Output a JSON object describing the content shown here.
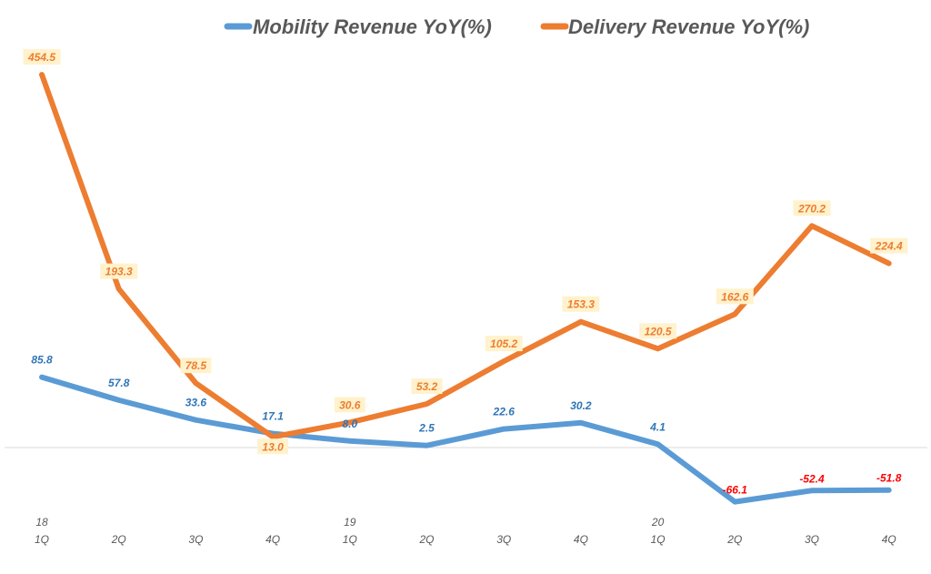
{
  "chart_data": {
    "type": "line",
    "categories": [
      "1Q",
      "2Q",
      "3Q",
      "4Q",
      "1Q",
      "2Q",
      "3Q",
      "4Q",
      "1Q",
      "2Q",
      "3Q",
      "4Q"
    ],
    "year_labels": [
      "18",
      "",
      "",
      "",
      "19",
      "",
      "",
      "",
      "20",
      "",
      "",
      ""
    ],
    "series": [
      {
        "name": "Mobility Revenue YoY(%)",
        "color": "#5B9BD5",
        "label_color": "#2E75B6",
        "negative_label_color": "#FF0000",
        "values": [
          85.8,
          57.8,
          33.6,
          17.1,
          8.0,
          2.5,
          22.6,
          30.2,
          4.1,
          -66.1,
          -52.4,
          -51.8
        ]
      },
      {
        "name": "Delivery  Revenue YoY(%)",
        "color": "#ED7D31",
        "label_color": "#ED7D31",
        "label_bg": "#FFF2CC",
        "values": [
          454.5,
          193.3,
          78.5,
          13.0,
          30.6,
          53.2,
          105.2,
          153.3,
          120.5,
          162.6,
          270.2,
          224.4
        ]
      }
    ],
    "ylim": [
      -100,
      500
    ],
    "grid": false,
    "legend": "top"
  }
}
